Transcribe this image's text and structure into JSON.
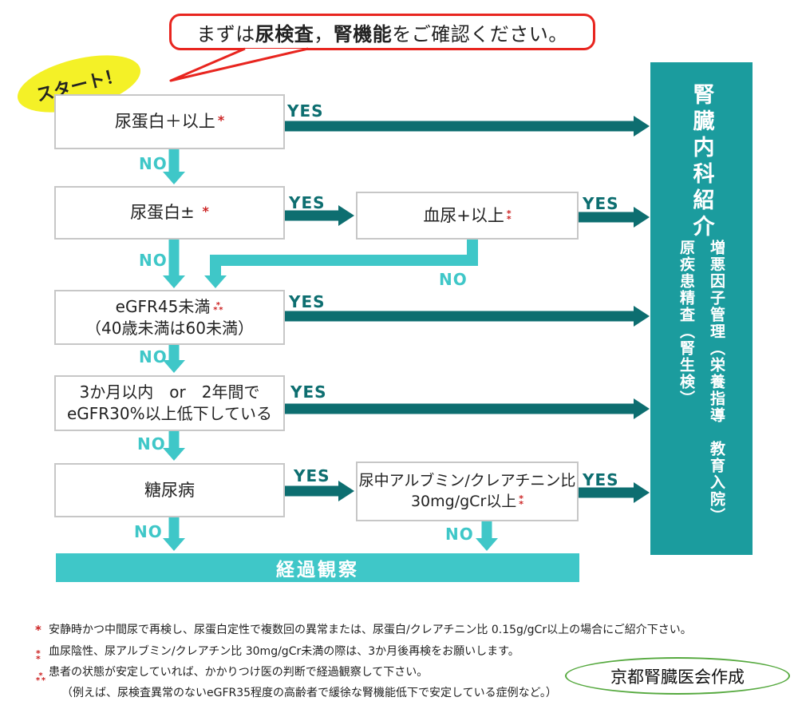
{
  "callout": {
    "pre": "まずは",
    "bold1": "尿検査",
    "comma": "，",
    "bold2": "腎機能",
    "post": "をご確認ください。"
  },
  "start_label": "スタート！",
  "labels": {
    "yes": "YES",
    "no": "NO"
  },
  "boxes": {
    "b1": {
      "text": "尿蛋白＋以上"
    },
    "b2": {
      "text": "尿蛋白±"
    },
    "b3": {
      "text": "血尿+以上"
    },
    "b4": {
      "line1": "eGFR45未満",
      "line2": "（40歳未満は60未満）"
    },
    "b5": {
      "line1": "3か月以内　or　2年間で",
      "line2": "eGFR30%以上低下している"
    },
    "b6": {
      "text": "糖尿病"
    },
    "b7": {
      "line1": "尿中アルブミン/クレアチニン比",
      "line2": "30mg/gCr以上"
    }
  },
  "observation_bar": "経過観察",
  "referral": {
    "title": "腎臓内科紹介",
    "col_right": "増悪因子管理（栄養指導　教育入院）",
    "col_left": "原疾患精査（腎生検）"
  },
  "footnotes": [
    {
      "marker": 1,
      "text": "安静時かつ中間尿で再検し、尿蛋白定性で複数回の異常または、尿蛋白/クレアチニン比 0.15g/gCr以上の場合にご紹介下さい。"
    },
    {
      "marker": 2,
      "text": "血尿陰性、尿アルブミン/クレアチン比 30mg/gCr未満の際は、3か月後再検をお願いします。"
    },
    {
      "marker": 3,
      "text": "患者の状態が安定していれば、かかりつけ医の判断で経過観察して下さい。"
    },
    {
      "marker": 0,
      "text": "（例えば、尿検査異常のないeGFR35程度の高齢者で緩徐な腎機能低下で安定している症例など。）"
    }
  ],
  "credit": "京都腎臓医会作成",
  "symbols": {
    "asterisk": "*"
  },
  "colors": {
    "teal_dark": "#0d6e70",
    "teal_light": "#3fc7c8",
    "teal_panel": "#1b9c9e",
    "red": "#e8251f",
    "marker_red": "#cc2222",
    "yellow": "#f4f127",
    "green": "#56a93f"
  }
}
